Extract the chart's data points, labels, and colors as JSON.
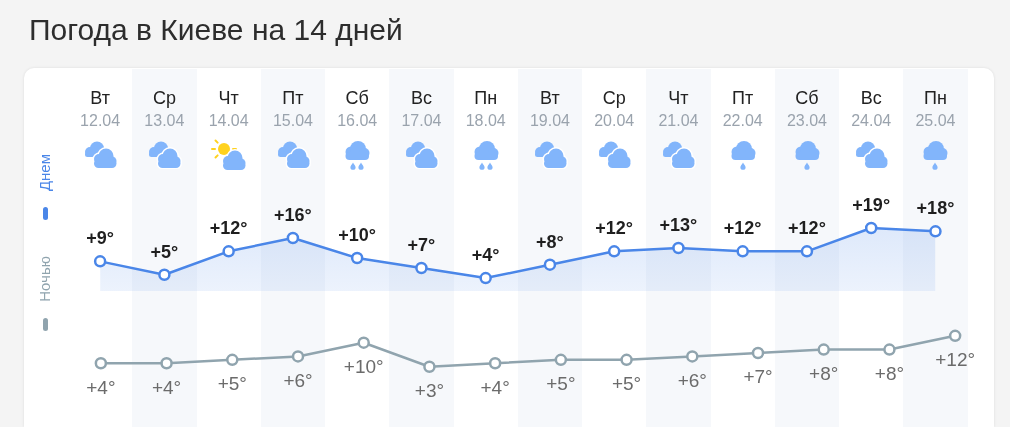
{
  "chart_data": [
    {
      "type": "area",
      "title": "Погода в Киеве на 14 дней",
      "categories": [
        "Вт 12.04",
        "Ср 13.04",
        "Чт 14.04",
        "Пт 15.04",
        "Сб 16.04",
        "Вс 17.04",
        "Пн 18.04",
        "Вт 19.04",
        "Ср 20.04",
        "Чт 21.04",
        "Пт 22.04",
        "Сб 23.04",
        "Вс 24.04",
        "Пн 25.04"
      ],
      "series": [
        {
          "name": "Днем",
          "color": "#4a86e8",
          "values": [
            9,
            5,
            12,
            16,
            10,
            7,
            4,
            8,
            12,
            13,
            12,
            12,
            19,
            18
          ],
          "value_labels": [
            "+9°",
            "+5°",
            "+12°",
            "+16°",
            "+10°",
            "+7°",
            "+4°",
            "+8°",
            "+12°",
            "+13°",
            "+12°",
            "+12°",
            "+19°",
            "+18°"
          ]
        }
      ],
      "tick_labels": "x",
      "legend": "left",
      "marker": "circle",
      "line_style": "solid"
    },
    {
      "type": "line",
      "categories": [
        null,
        null,
        null,
        null,
        null,
        null,
        null,
        null,
        null,
        null,
        null,
        null,
        null,
        null
      ],
      "series": [
        {
          "name": "Ночью",
          "color": "#90a4ae",
          "values": [
            4,
            4,
            5,
            6,
            10,
            3,
            4,
            5,
            5,
            6,
            7,
            8,
            8,
            12
          ],
          "value_labels": [
            "+4°",
            "+4°",
            "+5°",
            "+6°",
            "+10°",
            "+3°",
            "+4°",
            "+5°",
            "+5°",
            "+6°",
            "+7°",
            "+8°",
            "+8°",
            "+12°"
          ]
        }
      ],
      "tick_labels": false,
      "legend": "left",
      "marker": "circle",
      "line_style": "solid"
    }
  ]
}
